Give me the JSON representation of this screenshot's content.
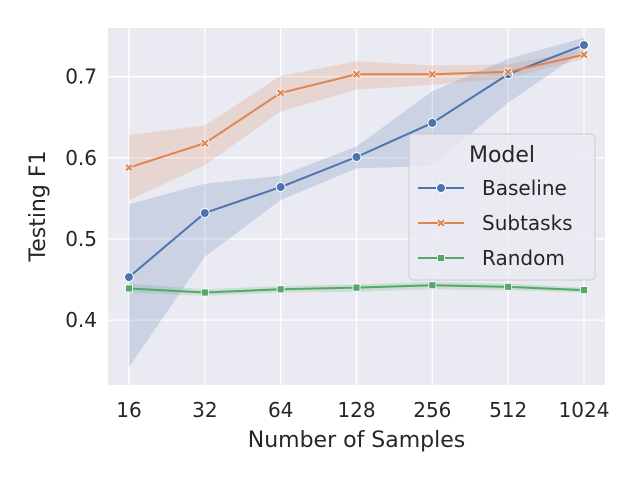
{
  "chart_data": {
    "type": "line",
    "title": "",
    "xlabel": "Number of Samples",
    "ylabel": "Testing F1",
    "x_scale": "log2",
    "categories": [
      "16",
      "32",
      "64",
      "128",
      "256",
      "512",
      "1024"
    ],
    "x": [
      16,
      32,
      64,
      128,
      256,
      512,
      1024
    ],
    "ylim": [
      0.32,
      0.76
    ],
    "yticks": [
      0.4,
      0.5,
      0.6,
      0.7
    ],
    "ytick_labels": [
      "0.4",
      "0.5",
      "0.6",
      "0.7"
    ],
    "grid": true,
    "background": "#eaeaf2",
    "legend": {
      "title": "Model",
      "placement": "center-right"
    },
    "series": [
      {
        "name": "Baseline",
        "color": "#4c72b0",
        "marker": "circle",
        "values": [
          0.453,
          0.532,
          0.564,
          0.601,
          0.643,
          0.703,
          0.739
        ],
        "ci_lower": [
          0.342,
          0.478,
          0.548,
          0.587,
          0.59,
          0.668,
          0.732
        ],
        "ci_upper": [
          0.543,
          0.568,
          0.578,
          0.614,
          0.682,
          0.722,
          0.748
        ]
      },
      {
        "name": "Subtasks",
        "color": "#dd8452",
        "marker": "x",
        "values": [
          0.588,
          0.618,
          0.68,
          0.703,
          0.703,
          0.706,
          0.727
        ],
        "ci_lower": [
          0.548,
          0.591,
          0.657,
          0.684,
          0.69,
          0.698,
          0.722
        ],
        "ci_upper": [
          0.628,
          0.64,
          0.701,
          0.719,
          0.714,
          0.715,
          0.733
        ]
      },
      {
        "name": "Random",
        "color": "#55a868",
        "marker": "square",
        "values": [
          0.439,
          0.434,
          0.438,
          0.44,
          0.443,
          0.441,
          0.437
        ],
        "ci_lower": [
          0.434,
          0.43,
          0.434,
          0.435,
          0.438,
          0.437,
          0.434
        ],
        "ci_upper": [
          0.445,
          0.438,
          0.442,
          0.444,
          0.447,
          0.445,
          0.44
        ]
      }
    ]
  }
}
